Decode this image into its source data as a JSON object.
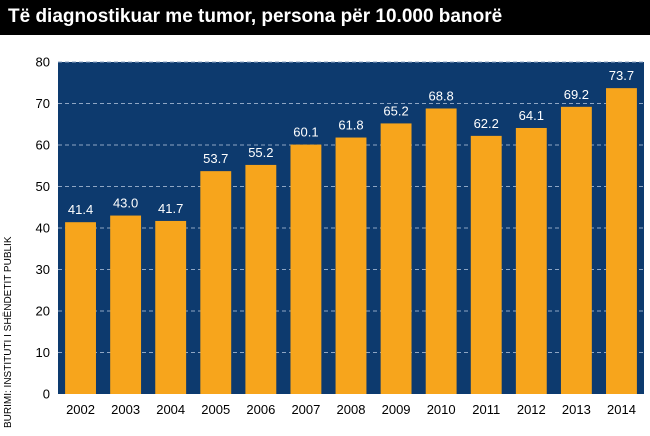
{
  "chart_data": {
    "type": "bar",
    "title": "Të diagnostikuar me tumor, persona për 10.000 banorë",
    "source": "BURIMI: INSTITUTI I SHËNDETIT PUBLIK",
    "categories": [
      "2002",
      "2003",
      "2004",
      "2005",
      "2006",
      "2007",
      "2008",
      "2009",
      "2010",
      "2011",
      "2012",
      "2013",
      "2014"
    ],
    "values": [
      41.4,
      43.0,
      41.7,
      53.7,
      55.2,
      60.1,
      61.8,
      65.2,
      68.8,
      62.2,
      64.1,
      69.2,
      73.7
    ],
    "value_labels": [
      "41.4",
      "43.0",
      "41.7",
      "53.7",
      "55.2",
      "60.1",
      "61.8",
      "65.2",
      "68.8",
      "62.2",
      "64.1",
      "69.2",
      "73.7"
    ],
    "ylim": [
      0,
      80
    ],
    "yticks": [
      "0",
      "10",
      "20",
      "30",
      "40",
      "50",
      "60",
      "70",
      "80"
    ],
    "grid": true,
    "colors": {
      "bar": "#F7A51C",
      "plot_background": "#0D3A6E",
      "grid": "#8FA6C4"
    }
  }
}
